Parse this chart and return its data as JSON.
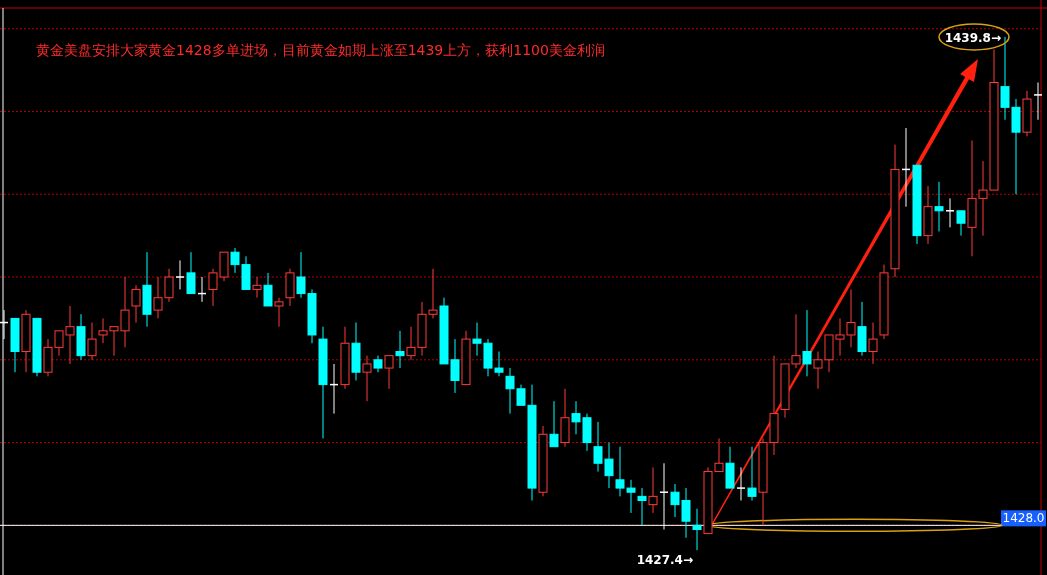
{
  "chart_data": {
    "type": "candlestick",
    "title": "黄金美盘安排大家黄金1428多单进场，目前黄金如期上涨至1439上方，获利1100美金利润",
    "categories": [
      null,
      null,
      null,
      null,
      null,
      null,
      null,
      null,
      null,
      null,
      null,
      null,
      null,
      null,
      null,
      null,
      null,
      null,
      null,
      null,
      null,
      null,
      null,
      null,
      null,
      null,
      null,
      null,
      null,
      null,
      null,
      null,
      null,
      null,
      null,
      null,
      null,
      null,
      null,
      null,
      null,
      null,
      null,
      null,
      null,
      null,
      null,
      null,
      null,
      null,
      null,
      null,
      null,
      null,
      null,
      null,
      null,
      null,
      null,
      null,
      null,
      null,
      null,
      null,
      null,
      null,
      null,
      null,
      null,
      null,
      null,
      null,
      null,
      null,
      null,
      null,
      null,
      null,
      null,
      null,
      null,
      null,
      null,
      null,
      null,
      null,
      null,
      null,
      null,
      null,
      null,
      null,
      null,
      null,
      null
    ],
    "ohlc": [
      [
        1432.9,
        1433.2,
        1432.5,
        1432.9
      ],
      [
        1433.0,
        1433.0,
        1431.7,
        1432.2
      ],
      [
        1432.2,
        1433.2,
        1431.7,
        1433.1
      ],
      [
        1433.0,
        1433.0,
        1431.6,
        1431.7
      ],
      [
        1431.7,
        1432.5,
        1431.6,
        1432.3
      ],
      [
        1432.3,
        1432.7,
        1432.1,
        1432.7
      ],
      [
        1432.6,
        1433.3,
        1431.9,
        1432.8
      ],
      [
        1432.8,
        1433.1,
        1432.0,
        1432.1
      ],
      [
        1432.1,
        1432.9,
        1432.0,
        1432.5
      ],
      [
        1432.6,
        1433.0,
        1432.4,
        1432.7
      ],
      [
        1432.7,
        1432.8,
        1432.1,
        1432.8
      ],
      [
        1432.7,
        1434.0,
        1432.3,
        1433.2
      ],
      [
        1433.3,
        1433.8,
        1432.9,
        1433.7
      ],
      [
        1433.8,
        1434.6,
        1432.8,
        1433.1
      ],
      [
        1433.2,
        1434.0,
        1433.0,
        1433.5
      ],
      [
        1433.5,
        1434.2,
        1433.4,
        1434.0
      ],
      [
        1434.0,
        1434.4,
        1433.7,
        1434.0
      ],
      [
        1434.1,
        1434.6,
        1433.6,
        1433.6
      ],
      [
        1433.6,
        1434.0,
        1433.4,
        1433.6
      ],
      [
        1433.7,
        1434.2,
        1433.3,
        1434.1
      ],
      [
        1434.0,
        1434.6,
        1433.9,
        1434.6
      ],
      [
        1434.6,
        1434.7,
        1434.1,
        1434.3
      ],
      [
        1434.3,
        1434.5,
        1433.7,
        1433.7
      ],
      [
        1433.7,
        1434.0,
        1433.5,
        1433.8
      ],
      [
        1433.8,
        1434.1,
        1433.3,
        1433.3
      ],
      [
        1433.3,
        1433.5,
        1432.8,
        1433.4
      ],
      [
        1433.5,
        1434.2,
        1433.3,
        1434.1
      ],
      [
        1434.0,
        1434.6,
        1433.5,
        1433.6
      ],
      [
        1433.6,
        1433.7,
        1432.4,
        1432.6
      ],
      [
        1432.5,
        1432.8,
        1430.1,
        1431.4
      ],
      [
        1431.4,
        1431.9,
        1430.7,
        1431.4
      ],
      [
        1431.4,
        1432.8,
        1431.3,
        1432.4
      ],
      [
        1432.4,
        1432.9,
        1431.5,
        1431.7
      ],
      [
        1431.7,
        1432.1,
        1431.0,
        1431.9
      ],
      [
        1432.0,
        1432.1,
        1431.7,
        1431.8
      ],
      [
        1431.8,
        1432.1,
        1431.3,
        1432.1
      ],
      [
        1432.2,
        1432.7,
        1431.8,
        1432.1
      ],
      [
        1432.1,
        1432.8,
        1432.0,
        1432.3
      ],
      [
        1432.3,
        1433.4,
        1432.1,
        1433.1
      ],
      [
        1433.1,
        1434.2,
        1433.0,
        1433.2
      ],
      [
        1433.3,
        1433.5,
        1431.9,
        1431.9
      ],
      [
        1432.0,
        1432.5,
        1431.2,
        1431.5
      ],
      [
        1431.4,
        1432.7,
        1431.4,
        1432.5
      ],
      [
        1432.5,
        1432.9,
        1432.1,
        1432.4
      ],
      [
        1432.4,
        1432.5,
        1431.6,
        1431.8
      ],
      [
        1431.8,
        1432.2,
        1431.6,
        1431.7
      ],
      [
        1431.6,
        1431.8,
        1430.7,
        1431.3
      ],
      [
        1431.3,
        1431.4,
        1430.9,
        1430.9
      ],
      [
        1430.9,
        1431.4,
        1428.6,
        1428.9
      ],
      [
        1428.8,
        1430.4,
        1428.7,
        1430.2
      ],
      [
        1430.2,
        1431.0,
        1429.9,
        1429.9
      ],
      [
        1430.0,
        1431.3,
        1429.9,
        1430.6
      ],
      [
        1430.7,
        1431.0,
        1430.2,
        1430.5
      ],
      [
        1430.6,
        1430.7,
        1429.8,
        1430.0
      ],
      [
        1429.9,
        1430.5,
        1429.3,
        1429.5
      ],
      [
        1429.6,
        1430.0,
        1428.9,
        1429.2
      ],
      [
        1429.1,
        1429.9,
        1428.7,
        1428.9
      ],
      [
        1428.9,
        1429.1,
        1428.3,
        1428.8
      ],
      [
        1428.7,
        1428.9,
        1428.0,
        1428.6
      ],
      [
        1428.5,
        1429.4,
        1428.3,
        1428.7
      ],
      [
        1428.8,
        1429.5,
        1427.9,
        1428.8
      ],
      [
        1428.8,
        1429.0,
        1428.2,
        1428.5
      ],
      [
        1428.6,
        1428.9,
        1427.7,
        1428.1
      ],
      [
        1428.0,
        1428.4,
        1427.4,
        1427.9
      ],
      [
        1427.8,
        1429.4,
        1427.8,
        1429.3
      ],
      [
        1429.3,
        1430.1,
        1429.3,
        1429.5
      ],
      [
        1429.5,
        1429.9,
        1428.9,
        1428.9
      ],
      [
        1428.9,
        1429.4,
        1428.6,
        1428.9
      ],
      [
        1428.9,
        1429.9,
        1428.6,
        1428.7
      ],
      [
        1428.8,
        1430.1,
        1428.0,
        1430.0
      ],
      [
        1430.0,
        1432.1,
        1429.7,
        1430.7
      ],
      [
        1430.8,
        1431.9,
        1430.6,
        1431.9
      ],
      [
        1431.9,
        1433.1,
        1431.8,
        1432.1
      ],
      [
        1432.2,
        1433.2,
        1431.6,
        1431.9
      ],
      [
        1431.8,
        1432.2,
        1431.3,
        1432.0
      ],
      [
        1432.0,
        1432.6,
        1431.7,
        1432.6
      ],
      [
        1432.5,
        1433.0,
        1432.1,
        1432.6
      ],
      [
        1432.6,
        1433.7,
        1432.3,
        1432.9
      ],
      [
        1432.8,
        1433.4,
        1432.1,
        1432.2
      ],
      [
        1432.2,
        1432.9,
        1431.9,
        1432.5
      ],
      [
        1432.6,
        1434.3,
        1432.5,
        1434.1
      ],
      [
        1434.2,
        1437.2,
        1434.0,
        1436.6
      ],
      [
        1436.6,
        1437.6,
        1435.7,
        1436.6
      ],
      [
        1436.7,
        1436.7,
        1434.8,
        1435.0
      ],
      [
        1435.0,
        1436.2,
        1434.8,
        1435.7
      ],
      [
        1435.7,
        1436.3,
        1435.1,
        1435.6
      ],
      [
        1435.6,
        1435.9,
        1435.2,
        1435.6
      ],
      [
        1435.6,
        1435.6,
        1435.0,
        1435.3
      ],
      [
        1435.2,
        1437.3,
        1434.5,
        1435.9
      ],
      [
        1435.9,
        1436.8,
        1435.0,
        1436.1
      ],
      [
        1436.1,
        1439.5,
        1436.1,
        1438.7
      ],
      [
        1438.6,
        1439.8,
        1437.8,
        1438.1
      ],
      [
        1438.1,
        1438.3,
        1436.0,
        1437.5
      ],
      [
        1437.5,
        1438.5,
        1437.4,
        1438.3
      ],
      [
        1438.4,
        1438.7,
        1437.8,
        1438.4
      ]
    ],
    "colors": [
      "#ffffff",
      "#00ffff",
      "#ff3b3b",
      "#00ffff",
      "#ff3b3b",
      "#ff3b3b",
      "#ff3b3b",
      "#00ffff",
      "#ff3b3b",
      "#ff3b3b",
      "#ff3b3b",
      "#ff3b3b",
      "#ff3b3b",
      "#00ffff",
      "#ff3b3b",
      "#ff3b3b",
      "#ffffff",
      "#00ffff",
      "#ffffff",
      "#ff3b3b",
      "#ff3b3b",
      "#00ffff",
      "#00ffff",
      "#ff3b3b",
      "#00ffff",
      "#ff3b3b",
      "#ff3b3b",
      "#00ffff",
      "#00ffff",
      "#00ffff",
      "#ffffff",
      "#ff3b3b",
      "#00ffff",
      "#ff3b3b",
      "#00ffff",
      "#ff3b3b",
      "#00ffff",
      "#ff3b3b",
      "#ff3b3b",
      "#ff3b3b",
      "#00ffff",
      "#00ffff",
      "#ff3b3b",
      "#00ffff",
      "#00ffff",
      "#00ffff",
      "#00ffff",
      "#00ffff",
      "#00ffff",
      "#ff3b3b",
      "#00ffff",
      "#ff3b3b",
      "#00ffff",
      "#00ffff",
      "#00ffff",
      "#00ffff",
      "#00ffff",
      "#00ffff",
      "#00ffff",
      "#ff3b3b",
      "#ffffff",
      "#00ffff",
      "#00ffff",
      "#00ffff",
      "#ff3b3b",
      "#ff3b3b",
      "#00ffff",
      "#ffffff",
      "#00ffff",
      "#ff3b3b",
      "#ff3b3b",
      "#ff3b3b",
      "#ff3b3b",
      "#00ffff",
      "#ff3b3b",
      "#ff3b3b",
      "#ff3b3b",
      "#ff3b3b",
      "#00ffff",
      "#ff3b3b",
      "#ff3b3b",
      "#ff3b3b",
      "#ffffff",
      "#00ffff",
      "#ff3b3b",
      "#00ffff",
      "#ffffff",
      "#00ffff",
      "#ff3b3b",
      "#ff3b3b",
      "#ff3b3b",
      "#00ffff",
      "#00ffff",
      "#ff3b3b",
      "#ffffff"
    ],
    "ylim": [
      1426.8,
      1440.5
    ],
    "yticks": [
      {
        "value": 1428,
        "label": null
      },
      {
        "value": 1430,
        "label": null
      },
      {
        "value": 1432,
        "label": null
      },
      {
        "value": 1434,
        "label": null
      },
      {
        "value": 1436,
        "label": null
      },
      {
        "value": 1438,
        "label": null
      },
      {
        "value": 1440,
        "label": null
      }
    ],
    "grid": "y",
    "ref_lines": [
      {
        "axis": "y",
        "value": 1428.0,
        "label": "1428.0",
        "color": "#ffffff"
      }
    ],
    "annotations": [
      "1439.8→",
      "1427.4→"
    ]
  }
}
